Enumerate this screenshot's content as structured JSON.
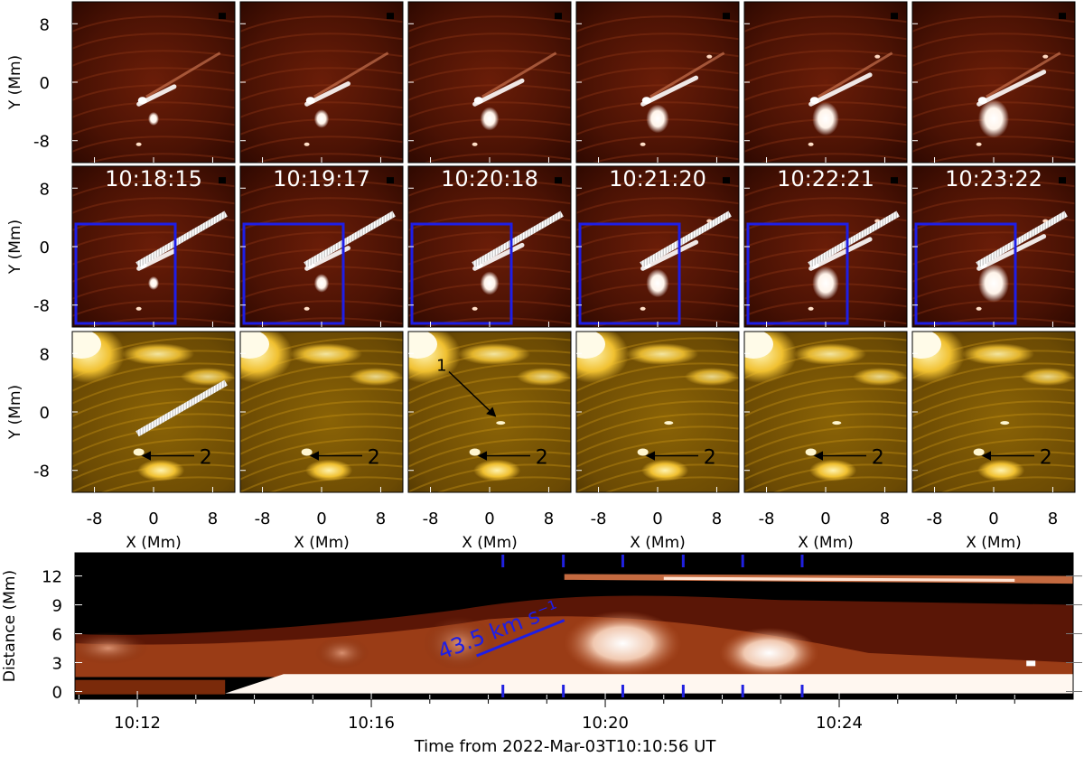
{
  "figure": {
    "timestamps": [
      "10:18:15",
      "10:19:17",
      "10:20:18",
      "10:21:20",
      "10:22:21",
      "10:23:22"
    ],
    "panel_y_ticks": [
      "8",
      "0",
      "-8"
    ],
    "panel_x_ticks": [
      "-8",
      "0",
      "8"
    ],
    "panel_y_label": "Y (Mm)",
    "panel_x_label": "X (Mm)",
    "arrow_labels": {
      "feature_1": "1",
      "feature_2": "2"
    },
    "colors": {
      "euv_colormap": [
        "#1a0400",
        "#5a1605",
        "#9a3a10",
        "#e8a070",
        "#ffffff"
      ],
      "chromo_colormap": [
        "#2a1a00",
        "#8a6200",
        "#d4a010",
        "#ffe27a",
        "#ffffff"
      ],
      "box": "#1e1ee6",
      "speed_line": "#1e1ee6",
      "slit": "#e8e8e8"
    }
  },
  "time_distance": {
    "y_label": "Distance (Mm)",
    "y_ticks": [
      "0",
      "3",
      "6",
      "9",
      "12"
    ],
    "x_ticks": [
      "10:12",
      "10:16",
      "10:20",
      "10:24"
    ],
    "x_label": "Time from 2022-Mar-03T10:10:56 UT",
    "speed_label": "43.5 km s⁻¹"
  }
}
